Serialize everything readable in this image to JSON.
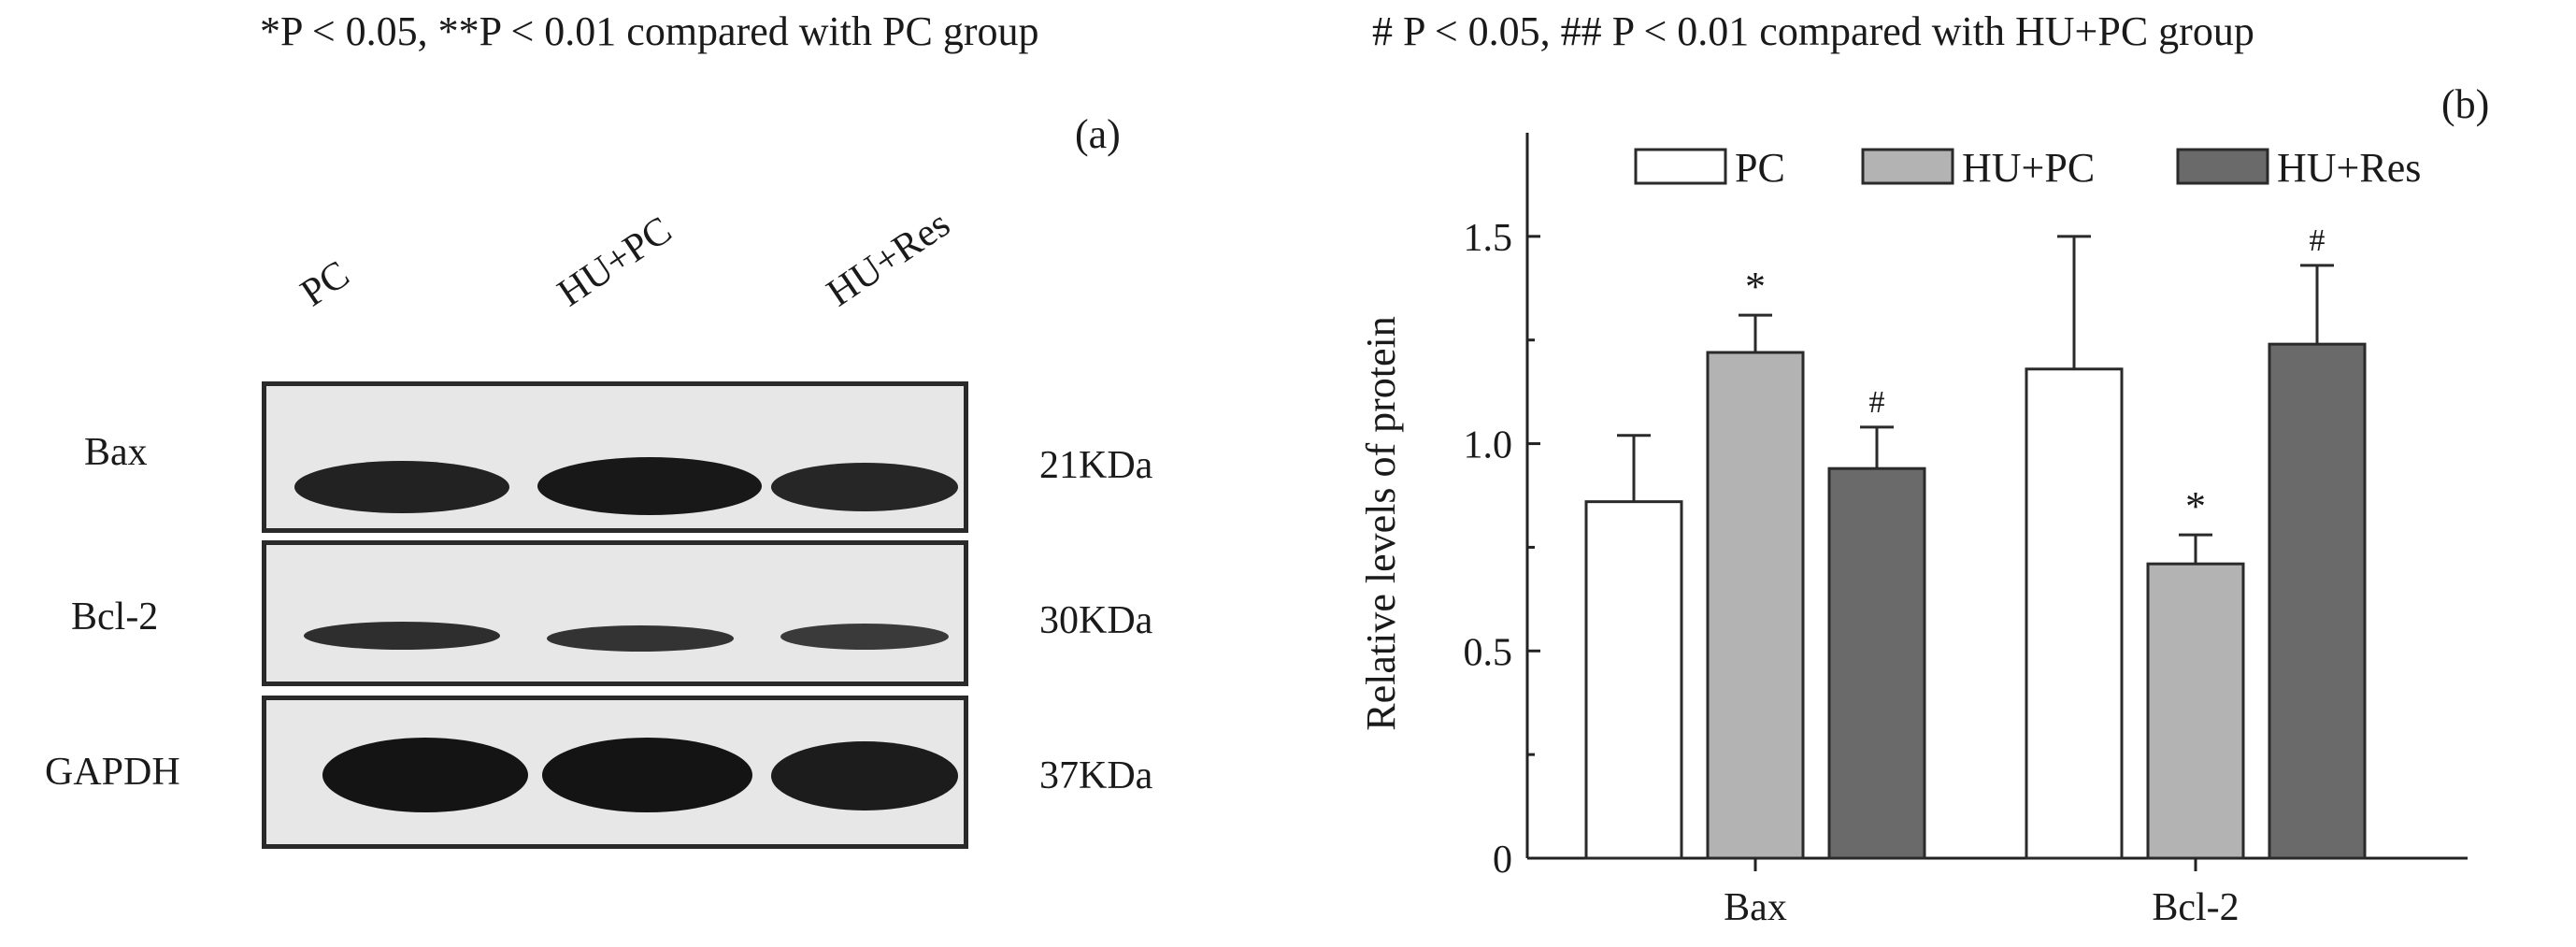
{
  "notes": {
    "left": "*P < 0.05,  **P < 0.01 compared with PC group",
    "right": "# P < 0.05,  ## P < 0.01 compared with HU+PC group"
  },
  "panel_a": {
    "label": "(a)",
    "lanes": [
      "PC",
      "HU+PC",
      "HU+Res"
    ],
    "rows": [
      {
        "name": "Bax",
        "size": "21KDa"
      },
      {
        "name": "Bcl-2",
        "size": "30KDa"
      },
      {
        "name": "GAPDH",
        "size": "37KDa"
      }
    ]
  },
  "panel_b": {
    "label": "(b)"
  },
  "chart_data": {
    "type": "bar",
    "categories": [
      "Bax",
      "Bcl-2"
    ],
    "series": [
      {
        "name": "PC",
        "values": [
          0.86,
          1.18
        ],
        "errors": [
          0.16,
          0.32
        ],
        "marks": [
          "",
          ""
        ],
        "color": "#ffffff"
      },
      {
        "name": "HU+PC",
        "values": [
          1.22,
          0.71
        ],
        "errors": [
          0.09,
          0.07
        ],
        "marks": [
          "*",
          "*"
        ],
        "color": "#b3b3b3"
      },
      {
        "name": "HU+Res",
        "values": [
          0.94,
          1.24
        ],
        "errors": [
          0.1,
          0.19
        ],
        "marks": [
          "#",
          "#"
        ],
        "color": "#6a6a6a"
      }
    ],
    "ylabel": "Relative levels of protein",
    "xlabel": "",
    "ylim": [
      0,
      1.75
    ],
    "yticks": [
      0,
      0.5,
      1.0,
      1.5
    ],
    "ytick_labels": [
      "0",
      "0.5",
      "1.0",
      "1.5"
    ],
    "legend_position": "top",
    "grid": false
  }
}
